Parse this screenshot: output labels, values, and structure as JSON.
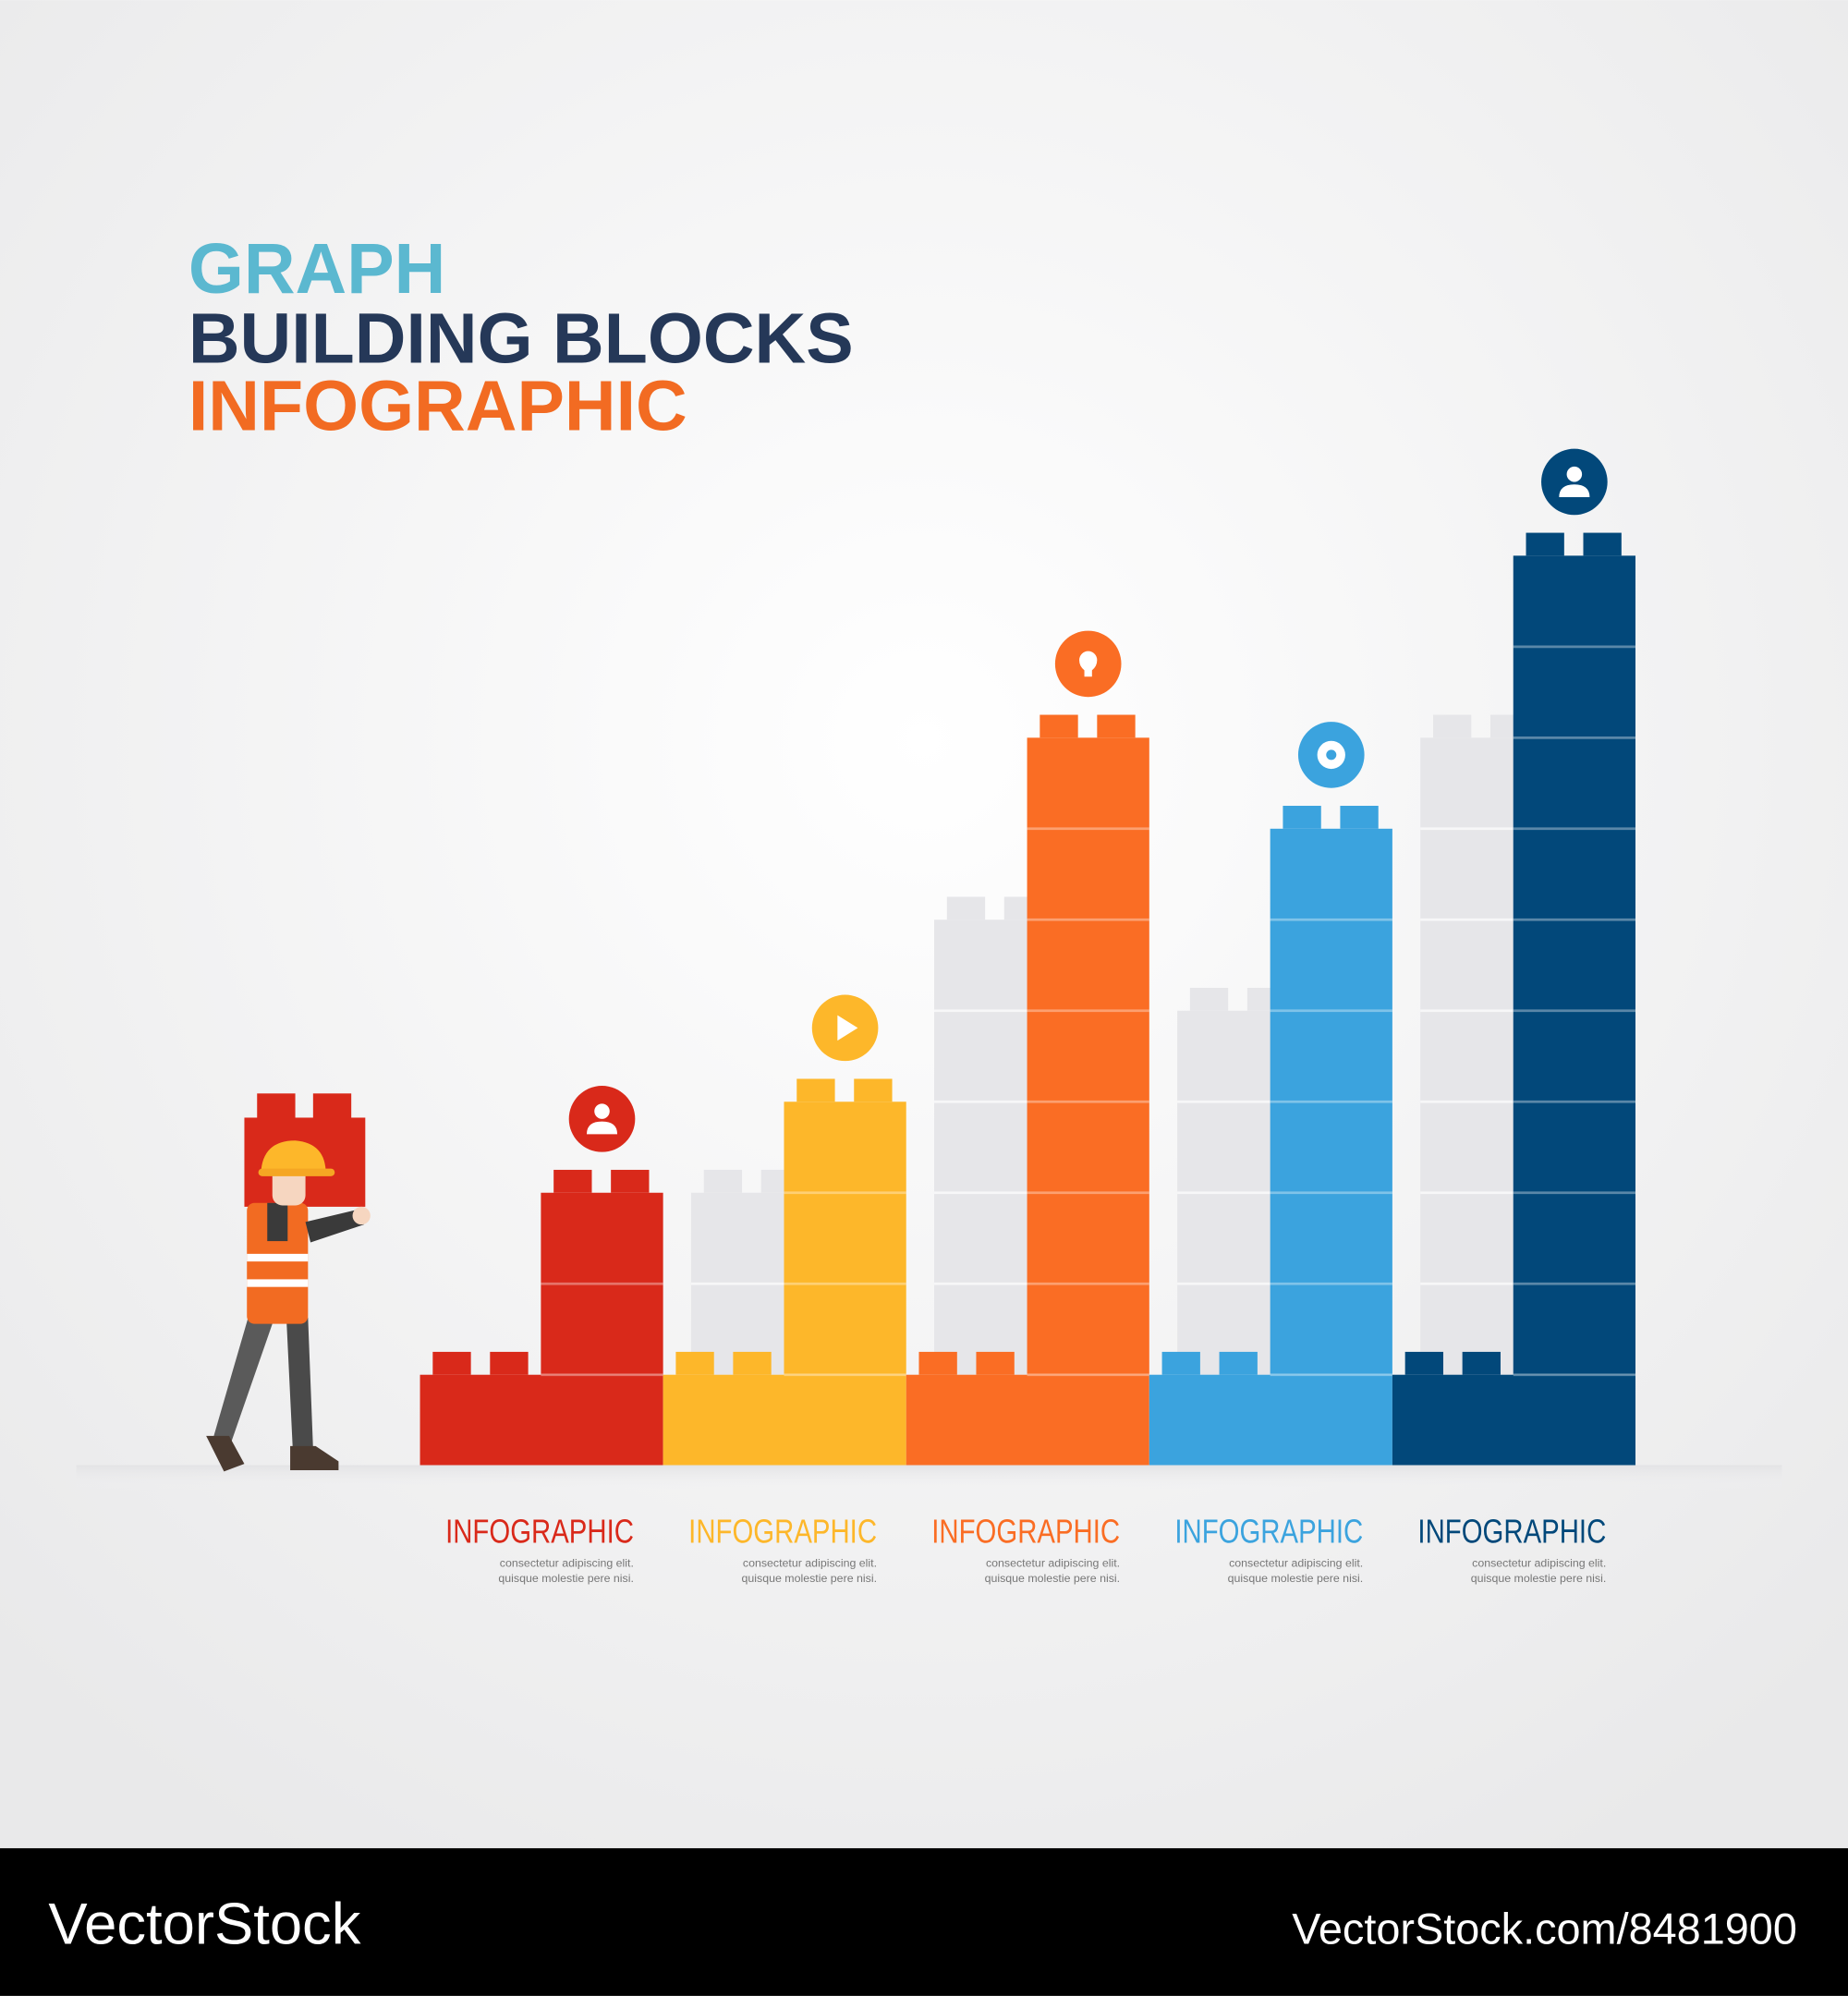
{
  "header": {
    "line1": "GRAPH",
    "line2": "BUILDING BLOCKS",
    "line3": "INFOGRAPHIC"
  },
  "columns": [
    {
      "label": "INFOGRAPHIC",
      "text1": "consectetur adipiscing elit.",
      "text2": "quisque molestie pere nisi.",
      "blocks": 2,
      "behind": 0,
      "color": "#d9291a"
    },
    {
      "label": "INFOGRAPHIC",
      "text1": "consectetur adipiscing elit.",
      "text2": "quisque molestie pere nisi.",
      "blocks": 3,
      "behind": 2,
      "color": "#fdb72a"
    },
    {
      "label": "INFOGRAPHIC",
      "text1": "consectetur adipiscing elit.",
      "text2": "quisque molestie pere nisi.",
      "blocks": 7,
      "behind": 5,
      "color": "#fa6d24"
    },
    {
      "label": "INFOGRAPHIC",
      "text1": "consectetur adipiscing elit.",
      "text2": "quisque molestie pere nisi.",
      "blocks": 6,
      "behind": 4,
      "color": "#3ba3de"
    },
    {
      "label": "INFOGRAPHIC",
      "text1": "consectetur adipiscing elit.",
      "text2": "quisque molestie pere nisi.",
      "blocks": 9,
      "behind": 7,
      "color": "#02487a"
    }
  ],
  "footer": {
    "brand": "VectorStock",
    "url": "VectorStock.com/8481900"
  }
}
